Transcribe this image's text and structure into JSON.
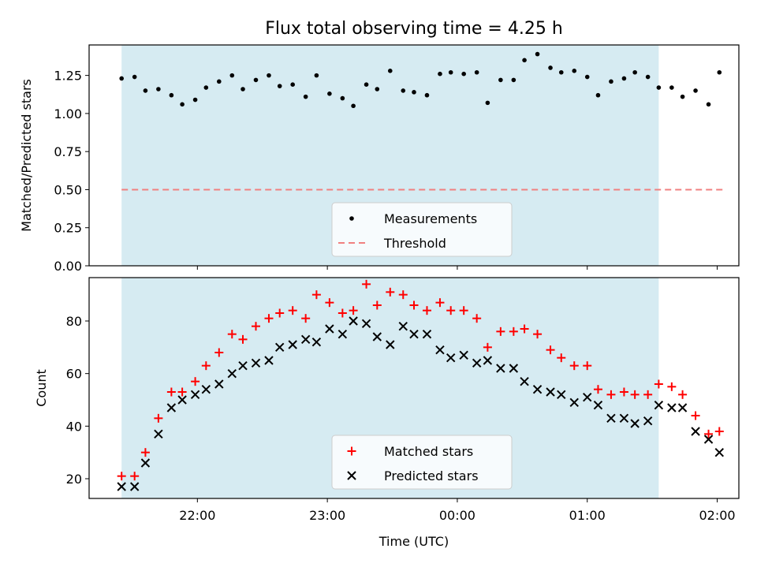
{
  "title": "Flux total observing time = 4.25 h",
  "colors": {
    "shade": "#add8e6",
    "measurement": "#000000",
    "threshold": "#f08080",
    "matched": "#ff0000",
    "predicted": "#000000"
  },
  "chart_data": [
    {
      "type": "scatter",
      "ylabel": "Matched/Predicted stars",
      "xlim": [
        "21:10",
        "02:10"
      ],
      "ylim": [
        0,
        1.45
      ],
      "ytick_values": [
        0,
        0.25,
        0.5,
        0.75,
        1.0,
        1.25
      ],
      "ytick_labels": [
        "0.00",
        "0.25",
        "0.50",
        "0.75",
        "1.00",
        "1.25"
      ],
      "shaded_span": [
        "21:25",
        "01:33"
      ],
      "legend": [
        "Measurements",
        "Threshold"
      ],
      "legend_position": "lower center",
      "threshold": {
        "name": "Threshold",
        "y": 0.5,
        "x": [
          "21:25",
          "02:03"
        ]
      },
      "series": [
        {
          "name": "Measurements",
          "x": [
            "21:25",
            "21:31",
            "21:36",
            "21:42",
            "21:48",
            "21:53",
            "21:59",
            "22:04",
            "22:10",
            "22:16",
            "22:21",
            "22:27",
            "22:33",
            "22:38",
            "22:44",
            "22:50",
            "22:55",
            "23:01",
            "23:07",
            "23:12",
            "23:18",
            "23:23",
            "23:29",
            "23:35",
            "23:40",
            "23:46",
            "23:52",
            "23:57",
            "00:03",
            "00:09",
            "00:14",
            "00:20",
            "00:26",
            "00:31",
            "00:37",
            "00:43",
            "00:48",
            "00:54",
            "01:00",
            "01:05",
            "01:11",
            "01:17",
            "01:22",
            "01:28",
            "01:33",
            "01:39",
            "01:44",
            "01:50",
            "01:56",
            "02:01"
          ],
          "values": [
            1.23,
            1.24,
            1.15,
            1.16,
            1.12,
            1.06,
            1.09,
            1.17,
            1.21,
            1.25,
            1.16,
            1.22,
            1.25,
            1.18,
            1.19,
            1.11,
            1.25,
            1.13,
            1.1,
            1.05,
            1.19,
            1.16,
            1.28,
            1.15,
            1.14,
            1.12,
            1.26,
            1.27,
            1.26,
            1.27,
            1.07,
            1.22,
            1.22,
            1.35,
            1.39,
            1.3,
            1.27,
            1.28,
            1.24,
            1.12,
            1.21,
            1.23,
            1.27,
            1.24,
            1.17,
            1.17,
            1.11,
            1.15,
            1.06,
            1.27
          ]
        }
      ]
    },
    {
      "type": "scatter",
      "xlabel": "Time (UTC)",
      "ylabel": "Count",
      "xlim": [
        "21:10",
        "02:10"
      ],
      "ylim": [
        12.5,
        96.5
      ],
      "xtick_labels": [
        "22:00",
        "23:00",
        "00:00",
        "01:00",
        "02:00"
      ],
      "ytick_values": [
        20,
        40,
        60,
        80
      ],
      "ytick_labels": [
        "20",
        "40",
        "60",
        "80"
      ],
      "shaded_span": [
        "21:25",
        "01:33"
      ],
      "legend": [
        "Matched stars",
        "Predicted stars"
      ],
      "legend_position": "lower center",
      "series": [
        {
          "name": "Matched stars",
          "marker": "+",
          "x": [
            "21:25",
            "21:31",
            "21:36",
            "21:42",
            "21:48",
            "21:53",
            "21:59",
            "22:04",
            "22:10",
            "22:16",
            "22:21",
            "22:27",
            "22:33",
            "22:38",
            "22:44",
            "22:50",
            "22:55",
            "23:01",
            "23:07",
            "23:12",
            "23:18",
            "23:23",
            "23:29",
            "23:35",
            "23:40",
            "23:46",
            "23:52",
            "23:57",
            "00:03",
            "00:09",
            "00:14",
            "00:20",
            "00:26",
            "00:31",
            "00:37",
            "00:43",
            "00:48",
            "00:54",
            "01:00",
            "01:05",
            "01:11",
            "01:17",
            "01:22",
            "01:28",
            "01:33",
            "01:39",
            "01:44",
            "01:50",
            "01:56",
            "02:01"
          ],
          "values": [
            21,
            21,
            30,
            43,
            53,
            53,
            57,
            63,
            68,
            75,
            73,
            78,
            81,
            83,
            84,
            81,
            90,
            87,
            83,
            84,
            94,
            86,
            91,
            90,
            86,
            84,
            87,
            84,
            84,
            81,
            70,
            76,
            76,
            77,
            75,
            69,
            66,
            63,
            63,
            54,
            52,
            53,
            52,
            52,
            56,
            55,
            52,
            44,
            37,
            38
          ]
        },
        {
          "name": "Predicted stars",
          "marker": "x",
          "x": [
            "21:25",
            "21:31",
            "21:36",
            "21:42",
            "21:48",
            "21:53",
            "21:59",
            "22:04",
            "22:10",
            "22:16",
            "22:21",
            "22:27",
            "22:33",
            "22:38",
            "22:44",
            "22:50",
            "22:55",
            "23:01",
            "23:07",
            "23:12",
            "23:18",
            "23:23",
            "23:29",
            "23:35",
            "23:40",
            "23:46",
            "23:52",
            "23:57",
            "00:03",
            "00:09",
            "00:14",
            "00:20",
            "00:26",
            "00:31",
            "00:37",
            "00:43",
            "00:48",
            "00:54",
            "01:00",
            "01:05",
            "01:11",
            "01:17",
            "01:22",
            "01:28",
            "01:33",
            "01:39",
            "01:44",
            "01:50",
            "01:56",
            "02:01"
          ],
          "values": [
            17,
            17,
            26,
            37,
            47,
            50,
            52,
            54,
            56,
            60,
            63,
            64,
            65,
            70,
            71,
            73,
            72,
            77,
            75,
            80,
            79,
            74,
            71,
            78,
            75,
            75,
            69,
            66,
            67,
            64,
            65,
            62,
            62,
            57,
            54,
            53,
            52,
            49,
            51,
            48,
            43,
            43,
            41,
            42,
            48,
            47,
            47,
            38,
            35,
            30
          ]
        }
      ]
    }
  ]
}
